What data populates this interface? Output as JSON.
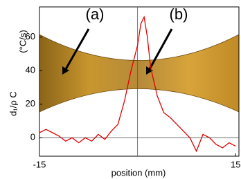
{
  "chart_data": {
    "type": "line",
    "y_label": "d₁/ρ C",
    "y_unit": "(°C/s)",
    "x_label": "position (mm)",
    "annotations": [
      "(a)",
      "(b)"
    ],
    "xlim": [
      -15,
      15.5
    ],
    "ylim": [
      -11,
      78
    ],
    "xticks": [
      -15,
      15
    ],
    "yticks": [
      0,
      20,
      40,
      60
    ],
    "series": [
      {
        "color": "#e00000",
        "x": [
          -15,
          -14,
          -13,
          -12,
          -11,
          -10,
          -9,
          -8,
          -7,
          -6,
          -5,
          -4,
          -3,
          -2,
          -1,
          0,
          0.5,
          1,
          1.5,
          2,
          3,
          4,
          5,
          6,
          7,
          8,
          9,
          10,
          11,
          12,
          13,
          14,
          15
        ],
        "values": [
          3,
          5,
          3,
          1,
          -2,
          0,
          -3,
          0,
          -2,
          2,
          -1,
          4,
          8,
          22,
          40,
          55,
          68,
          72,
          60,
          42,
          25,
          15,
          12,
          8,
          4,
          0,
          -8,
          2,
          0,
          -4,
          -6,
          -3,
          -5
        ]
      }
    ]
  }
}
